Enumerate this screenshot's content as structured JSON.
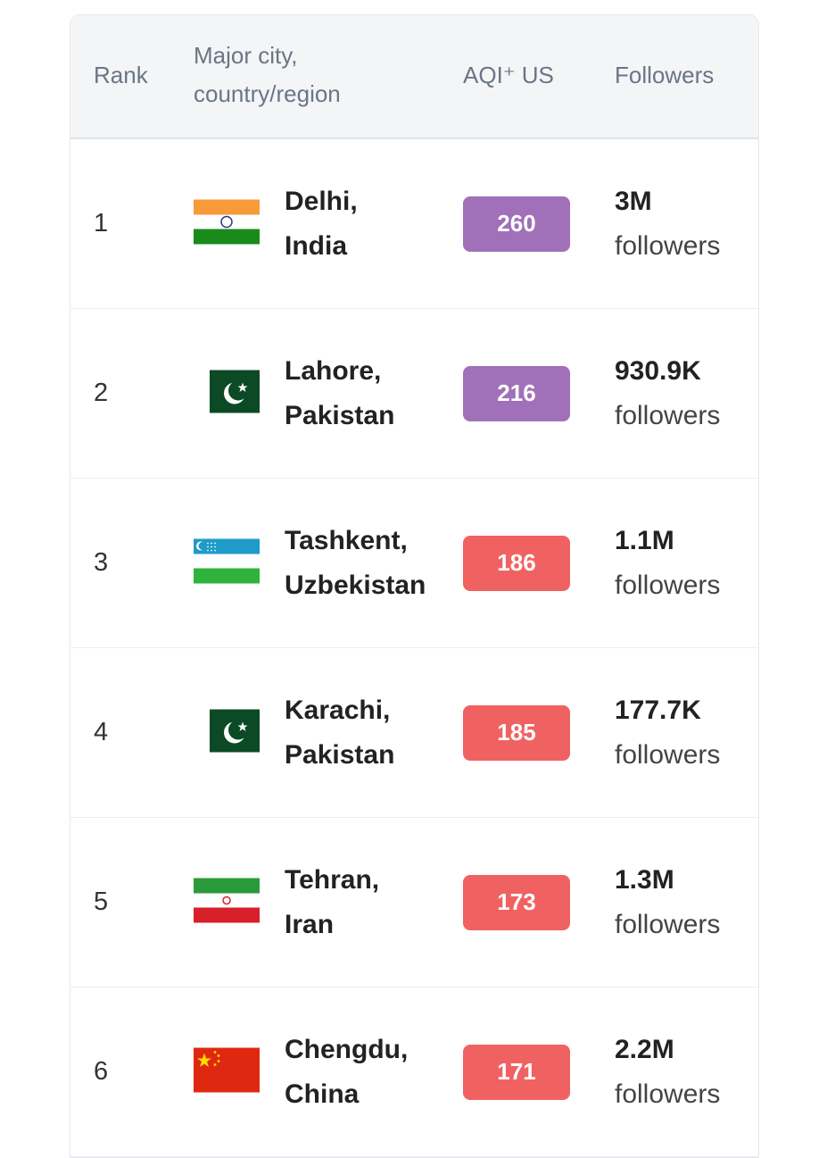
{
  "header": {
    "rank": "Rank",
    "city_line1": "Major city,",
    "city_line2": "country/region",
    "aqi": "AQI⁺ US",
    "followers": "Followers"
  },
  "rows": [
    {
      "rank": "1",
      "city": "Delhi,",
      "country": "India",
      "flag": "india",
      "aqi": "260",
      "aqi_color": "#a070b8",
      "followers": "3M",
      "followers_label": "followers"
    },
    {
      "rank": "2",
      "city": "Lahore,",
      "country": "Pakistan",
      "flag": "pakistan",
      "aqi": "216",
      "aqi_color": "#a070b8",
      "followers": "930.9K",
      "followers_label": "followers"
    },
    {
      "rank": "3",
      "city": "Tashkent,",
      "country": "Uzbekistan",
      "flag": "uzbekistan",
      "aqi": "186",
      "aqi_color": "#f06262",
      "followers": "1.1M",
      "followers_label": "followers"
    },
    {
      "rank": "4",
      "city": "Karachi,",
      "country": "Pakistan",
      "flag": "pakistan",
      "aqi": "185",
      "aqi_color": "#f06262",
      "followers": "177.7K",
      "followers_label": "followers"
    },
    {
      "rank": "5",
      "city": "Tehran,",
      "country": "Iran",
      "flag": "iran",
      "aqi": "173",
      "aqi_color": "#f06262",
      "followers": "1.3M",
      "followers_label": "followers"
    },
    {
      "rank": "6",
      "city": "Chengdu,",
      "country": "China",
      "flag": "china",
      "aqi": "171",
      "aqi_color": "#f06262",
      "followers": "2.2M",
      "followers_label": "followers"
    }
  ]
}
